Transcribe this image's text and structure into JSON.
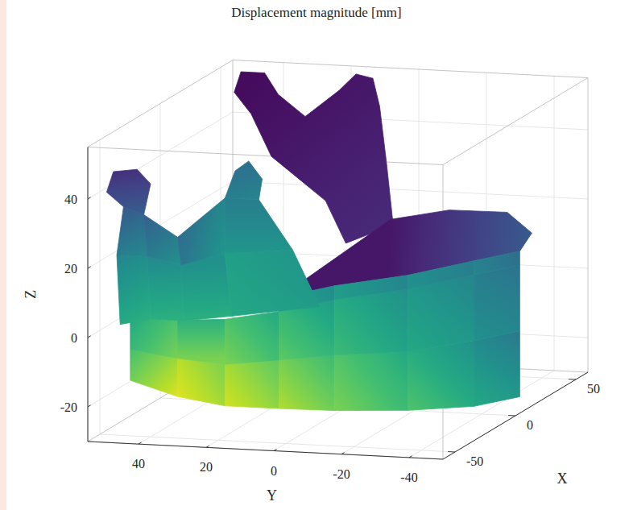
{
  "chart_data": {
    "type": "surface3d",
    "title": "Displacement magnitude [mm]",
    "xlabel": "X",
    "ylabel": "Y",
    "zlabel": "Z",
    "xlim": [
      -60,
      60
    ],
    "ylim": [
      -50,
      55
    ],
    "zlim": [
      -30,
      55
    ],
    "xticks": [
      -50,
      0,
      50
    ],
    "yticks": [
      -40,
      -20,
      0,
      20,
      40
    ],
    "zticks": [
      -20,
      0,
      20,
      40
    ],
    "grid": true,
    "clim": [
      0,
      1
    ],
    "patches": [
      {
        "x": [
          50,
          50,
          50,
          50,
          50,
          50,
          50,
          50,
          50,
          50,
          50,
          50,
          50,
          50,
          50
        ],
        "y": [
          4,
          6,
          8,
          10,
          15,
          20,
          30,
          38,
          42,
          49,
          51,
          46,
          40,
          24,
          18
        ],
        "z": [
          12,
          30,
          46,
          54,
          55,
          50,
          42,
          48,
          54,
          54,
          48,
          42,
          30,
          18,
          6
        ],
        "values": [
          0.12,
          0.1,
          0.08,
          0.06,
          0.06,
          0.06,
          0.05,
          0.04,
          0.03,
          0.03,
          0.04,
          0.05,
          0.07,
          0.09,
          0.11
        ]
      },
      {
        "x": [
          -50,
          -49,
          -44,
          -26,
          -2,
          22,
          38,
          46,
          48
        ],
        "y": [
          2,
          -14,
          -34,
          -47,
          -52,
          -47,
          -34,
          -14,
          4
        ],
        "z": [
          12,
          16,
          19,
          20,
          18,
          18,
          20,
          18,
          14
        ],
        "values": [
          0.15,
          0.18,
          0.2,
          0.22,
          0.25,
          0.28,
          0.18,
          0.1,
          0.06
        ]
      },
      {
        "x": [
          -50,
          -50,
          -50,
          -50
        ],
        "y": [
          46,
          32,
          32,
          46
        ],
        "z": [
          -14,
          -18,
          -7,
          -5
        ],
        "values": [
          0.85,
          0.95,
          0.8,
          0.7
        ]
      },
      {
        "x": [
          -50,
          -50,
          -50,
          -50
        ],
        "y": [
          32,
          18,
          18,
          32
        ],
        "z": [
          -18,
          -20,
          -8,
          -7
        ],
        "values": [
          0.95,
          0.93,
          0.8,
          0.8
        ]
      },
      {
        "x": [
          -50,
          -50,
          -50,
          -50
        ],
        "y": [
          18,
          2,
          2,
          18
        ],
        "z": [
          -20,
          -20,
          -6,
          -8
        ],
        "values": [
          0.93,
          0.88,
          0.75,
          0.8
        ]
      },
      {
        "x": [
          -50,
          -49,
          -49,
          -50
        ],
        "y": [
          2,
          -14,
          -14,
          2
        ],
        "z": [
          -20,
          -20,
          -4,
          -6
        ],
        "values": [
          0.88,
          0.8,
          0.68,
          0.75
        ]
      },
      {
        "x": [
          -49,
          -44,
          -44,
          -49
        ],
        "y": [
          -14,
          -34,
          -34,
          -14
        ],
        "z": [
          -20,
          -20,
          -3,
          -4
        ],
        "values": [
          0.8,
          0.72,
          0.6,
          0.68
        ]
      },
      {
        "x": [
          -44,
          -26,
          -26,
          -44
        ],
        "y": [
          -34,
          -47,
          -47,
          -34
        ],
        "z": [
          -20,
          -22,
          -3,
          -3
        ],
        "values": [
          0.72,
          0.6,
          0.5,
          0.6
        ]
      },
      {
        "x": [
          -26,
          -2,
          -2,
          -26
        ],
        "y": [
          -47,
          -52,
          -52,
          -47
        ],
        "z": [
          -22,
          -24,
          -5,
          -3
        ],
        "values": [
          0.6,
          0.45,
          0.4,
          0.5
        ]
      },
      {
        "x": [
          -50,
          -50,
          -50,
          -50
        ],
        "y": [
          46,
          32,
          32,
          46
        ],
        "z": [
          -5,
          -7,
          4,
          4
        ],
        "values": [
          0.7,
          0.8,
          0.64,
          0.6
        ]
      },
      {
        "x": [
          -50,
          -50,
          -50,
          -50
        ],
        "y": [
          32,
          18,
          18,
          32
        ],
        "z": [
          -7,
          -8,
          5,
          4
        ],
        "values": [
          0.8,
          0.8,
          0.66,
          0.64
        ]
      },
      {
        "x": [
          -50,
          -50,
          -50,
          -50
        ],
        "y": [
          18,
          2,
          2,
          18
        ],
        "z": [
          -8,
          -6,
          8,
          5
        ],
        "values": [
          0.8,
          0.75,
          0.6,
          0.66
        ]
      },
      {
        "x": [
          -50,
          -49,
          -49,
          -50
        ],
        "y": [
          2,
          -14,
          -14,
          2
        ],
        "z": [
          -6,
          -4,
          12,
          8
        ],
        "values": [
          0.75,
          0.68,
          0.55,
          0.6
        ]
      },
      {
        "x": [
          -49,
          -44,
          -44,
          -49
        ],
        "y": [
          -14,
          -34,
          -34,
          -14
        ],
        "z": [
          -4,
          -3,
          15,
          12
        ],
        "values": [
          0.68,
          0.6,
          0.5,
          0.55
        ]
      },
      {
        "x": [
          -44,
          -26,
          -26,
          -44
        ],
        "y": [
          -34,
          -47,
          -47,
          -34
        ],
        "z": [
          -3,
          -3,
          16,
          15
        ],
        "values": [
          0.6,
          0.5,
          0.45,
          0.5
        ]
      },
      {
        "x": [
          -26,
          -2,
          -2,
          -26
        ],
        "y": [
          -47,
          -52,
          -52,
          -47
        ],
        "z": [
          -3,
          -5,
          14,
          16
        ],
        "values": [
          0.5,
          0.4,
          0.38,
          0.45
        ]
      },
      {
        "x": [
          -50,
          -49,
          -49,
          -50
        ],
        "y": [
          2,
          -14,
          -14,
          2
        ],
        "z": [
          8,
          12,
          16,
          12
        ],
        "values": [
          0.6,
          0.55,
          0.48,
          0.5
        ]
      },
      {
        "x": [
          -49,
          -44,
          -44,
          -49
        ],
        "y": [
          -14,
          -34,
          -34,
          -14
        ],
        "z": [
          12,
          15,
          19,
          16
        ],
        "values": [
          0.55,
          0.5,
          0.45,
          0.48
        ]
      },
      {
        "x": [
          -44,
          -26,
          -26,
          -44
        ],
        "y": [
          -34,
          -47,
          -47,
          -34
        ],
        "z": [
          15,
          16,
          20,
          19
        ],
        "values": [
          0.5,
          0.45,
          0.42,
          0.45
        ]
      },
      {
        "x": [
          -26,
          -2,
          -2,
          -26
        ],
        "y": [
          -47,
          -52,
          -52,
          -47
        ],
        "z": [
          16,
          14,
          18,
          20
        ],
        "values": [
          0.45,
          0.38,
          0.36,
          0.42
        ]
      },
      {
        "x": [
          -50,
          -50,
          -50,
          -50
        ],
        "y": [
          49,
          40,
          41,
          50
        ],
        "z": [
          2,
          4,
          22,
          22
        ],
        "values": [
          0.62,
          0.63,
          0.47,
          0.45
        ]
      },
      {
        "x": [
          -50,
          -50,
          -50,
          -50
        ],
        "y": [
          40,
          30,
          31,
          41
        ],
        "z": [
          4,
          4,
          20,
          22
        ],
        "values": [
          0.63,
          0.63,
          0.5,
          0.47
        ]
      },
      {
        "x": [
          -50,
          -50,
          -50,
          -50
        ],
        "y": [
          30,
          16,
          18,
          31
        ],
        "z": [
          4,
          6,
          24,
          20
        ],
        "values": [
          0.63,
          0.6,
          0.52,
          0.5
        ]
      },
      {
        "x": [
          -50,
          -50,
          -50,
          -50
        ],
        "y": [
          16,
          -10,
          -2,
          18
        ],
        "z": [
          6,
          10,
          26,
          24
        ],
        "values": [
          0.6,
          0.58,
          0.52,
          0.52
        ]
      },
      {
        "x": [
          -50,
          -50,
          -50,
          -50
        ],
        "y": [
          50,
          41,
          42,
          48
        ],
        "z": [
          22,
          22,
          34,
          36
        ],
        "values": [
          0.45,
          0.47,
          0.3,
          0.28
        ]
      },
      {
        "x": [
          -50,
          -50,
          -50,
          -50
        ],
        "y": [
          41,
          31,
          32,
          42
        ],
        "z": [
          22,
          20,
          28,
          34
        ],
        "values": [
          0.47,
          0.5,
          0.35,
          0.3
        ]
      },
      {
        "x": [
          -50,
          -50,
          -50,
          -50
        ],
        "y": [
          31,
          18,
          18,
          32
        ],
        "z": [
          20,
          24,
          40,
          28
        ],
        "values": [
          0.5,
          0.52,
          0.42,
          0.35
        ]
      },
      {
        "x": [
          -50,
          -50,
          -50,
          -50
        ],
        "y": [
          18,
          -2,
          8,
          18
        ],
        "z": [
          24,
          26,
          40,
          40
        ],
        "values": [
          0.52,
          0.52,
          0.45,
          0.42
        ]
      },
      {
        "x": [
          -50,
          -50,
          -50,
          -50,
          -50,
          -50
        ],
        "y": [
          48,
          53,
          51,
          44,
          40,
          42
        ],
        "z": [
          36,
          40,
          46,
          47,
          43,
          34
        ],
        "values": [
          0.28,
          0.24,
          0.16,
          0.14,
          0.18,
          0.3
        ]
      },
      {
        "x": [
          -50,
          -50,
          -50,
          -50,
          -50
        ],
        "y": [
          18,
          15,
          11,
          7,
          8
        ],
        "z": [
          40,
          48,
          51,
          46,
          40
        ],
        "values": [
          0.42,
          0.38,
          0.36,
          0.4,
          0.45
        ]
      }
    ]
  }
}
